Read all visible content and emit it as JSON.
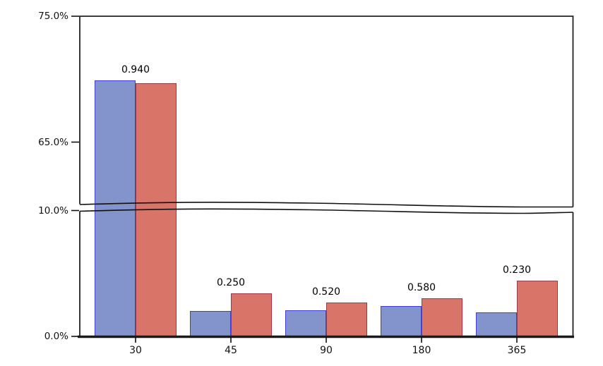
{
  "chart_data": {
    "type": "bar",
    "title": "",
    "xlabel": "",
    "ylabel": "",
    "categories": [
      "30",
      "45",
      "90",
      "180",
      "365"
    ],
    "series": [
      {
        "name": "blue",
        "fill_color": "#8294cb",
        "edge_color": "#3f3fcf",
        "values_percent": [
          69.9,
          2.0,
          2.1,
          2.4,
          1.9
        ]
      },
      {
        "name": "red",
        "fill_color": "#d97568",
        "edge_color": "#9e3947",
        "values_percent": [
          69.7,
          3.4,
          2.7,
          3.0,
          4.4
        ]
      }
    ],
    "annotations": [
      "0.940",
      "0.250",
      "0.520",
      "0.580",
      "0.230"
    ],
    "y_axis": {
      "unit": "%",
      "tick_labels": [
        "75.0%",
        "65.0%",
        "10.0%",
        "0.0%"
      ],
      "tick_values": [
        75,
        65,
        10,
        0
      ],
      "axis_break": {
        "lower": 10,
        "upper": 60
      },
      "top_panel_range": [
        60,
        75
      ],
      "bottom_panel_range": [
        0,
        10
      ]
    },
    "grid": false,
    "legend": false,
    "frame_color": "#222222"
  }
}
